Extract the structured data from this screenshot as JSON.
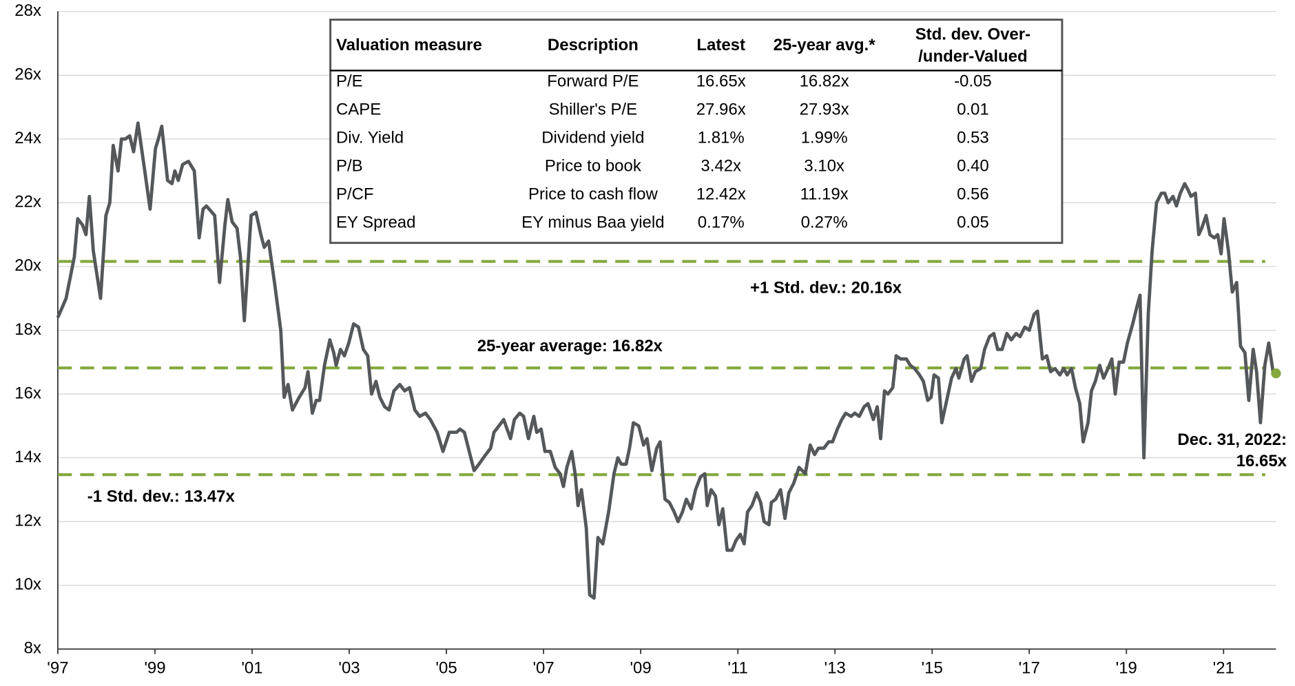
{
  "chart_data": {
    "type": "line",
    "xlim": [
      1997,
      2022.08
    ],
    "xticks": [
      {
        "value": 1997,
        "label": "'97"
      },
      {
        "value": 1999,
        "label": "'99"
      },
      {
        "value": 2001,
        "label": "'01"
      },
      {
        "value": 2003,
        "label": "'03"
      },
      {
        "value": 2005,
        "label": "'05"
      },
      {
        "value": 2007,
        "label": "'07"
      },
      {
        "value": 2009,
        "label": "'09"
      },
      {
        "value": 2011,
        "label": "'11"
      },
      {
        "value": 2013,
        "label": "'13"
      },
      {
        "value": 2015,
        "label": "'15"
      },
      {
        "value": 2017,
        "label": "'17"
      },
      {
        "value": 2019,
        "label": "'19"
      },
      {
        "value": 2021,
        "label": "'21"
      }
    ],
    "ylim": [
      8,
      28
    ],
    "yticks": [
      {
        "value": 8,
        "label": "8x"
      },
      {
        "value": 10,
        "label": "10x"
      },
      {
        "value": 12,
        "label": "12x"
      },
      {
        "value": 14,
        "label": "14x"
      },
      {
        "value": 16,
        "label": "16x"
      },
      {
        "value": 18,
        "label": "18x"
      },
      {
        "value": 20,
        "label": "20x"
      },
      {
        "value": 22,
        "label": "22x"
      },
      {
        "value": 24,
        "label": "24x"
      },
      {
        "value": 26,
        "label": "26x"
      },
      {
        "value": 28,
        "label": "28x"
      }
    ],
    "grid": true,
    "series": [
      {
        "color": "#54585a",
        "x": [
          1997.0,
          1997.17,
          1997.34,
          1997.41,
          1997.51,
          1997.58,
          1997.65,
          1997.73,
          1997.88,
          1997.99,
          1998.07,
          1998.14,
          1998.24,
          1998.31,
          1998.39,
          1998.48,
          1998.56,
          1998.65,
          1998.79,
          1998.9,
          1999.01,
          1999.07,
          1999.14,
          1999.26,
          1999.35,
          1999.41,
          1999.48,
          1999.57,
          1999.69,
          1999.81,
          1999.91,
          1999.99,
          2000.06,
          2000.23,
          2000.33,
          2000.44,
          2000.5,
          2000.59,
          2000.69,
          2000.76,
          2000.84,
          2000.98,
          2001.08,
          2001.18,
          2001.25,
          2001.34,
          2001.47,
          2001.59,
          2001.66,
          2001.74,
          2001.83,
          2001.97,
          2002.09,
          2002.15,
          2002.24,
          2002.32,
          2002.39,
          2002.49,
          2002.6,
          2002.68,
          2002.73,
          2002.82,
          2002.9,
          2002.99,
          2003.09,
          2003.19,
          2003.29,
          2003.38,
          2003.46,
          2003.55,
          2003.63,
          2003.73,
          2003.82,
          2003.92,
          2004.04,
          2004.14,
          2004.24,
          2004.35,
          2004.45,
          2004.57,
          2004.67,
          2004.81,
          2004.93,
          2005.06,
          2005.21,
          2005.28,
          2005.37,
          2005.47,
          2005.57,
          2005.67,
          2005.81,
          2005.91,
          2005.98,
          2006.08,
          2006.18,
          2006.32,
          2006.4,
          2006.51,
          2006.59,
          2006.69,
          2006.8,
          2006.86,
          2006.95,
          2007.03,
          2007.14,
          2007.24,
          2007.34,
          2007.41,
          2007.48,
          2007.58,
          2007.65,
          2007.71,
          2007.78,
          2007.88,
          2007.95,
          2008.04,
          2008.12,
          2008.22,
          2008.34,
          2008.45,
          2008.53,
          2008.6,
          2008.7,
          2008.77,
          2008.85,
          2008.96,
          2009.06,
          2009.13,
          2009.23,
          2009.33,
          2009.4,
          2009.5,
          2009.59,
          2009.69,
          2009.77,
          2009.86,
          2009.94,
          2010.04,
          2010.13,
          2010.23,
          2010.32,
          2010.37,
          2010.45,
          2010.54,
          2010.61,
          2010.69,
          2010.78,
          2010.88,
          2010.96,
          2011.05,
          2011.13,
          2011.2,
          2011.29,
          2011.39,
          2011.47,
          2011.54,
          2011.64,
          2011.69,
          2011.78,
          2011.88,
          2011.97,
          2012.05,
          2012.15,
          2012.26,
          2012.39,
          2012.49,
          2012.58,
          2012.66,
          2012.77,
          2012.87,
          2012.95,
          2013.05,
          2013.14,
          2013.22,
          2013.33,
          2013.41,
          2013.5,
          2013.6,
          2013.68,
          2013.79,
          2013.87,
          2013.94,
          2014.02,
          2014.09,
          2014.19,
          2014.26,
          2014.35,
          2014.47,
          2014.55,
          2014.64,
          2014.74,
          2014.82,
          2014.91,
          2014.98,
          2015.04,
          2015.13,
          2015.2,
          2015.3,
          2015.4,
          2015.49,
          2015.55,
          2015.66,
          2015.72,
          2015.81,
          2015.89,
          2016.0,
          2016.08,
          2016.18,
          2016.27,
          2016.35,
          2016.44,
          2016.54,
          2016.63,
          2016.73,
          2016.81,
          2016.91,
          2017.0,
          2017.1,
          2017.17,
          2017.27,
          2017.36,
          2017.44,
          2017.53,
          2017.63,
          2017.71,
          2017.78,
          2017.87,
          2017.95,
          2018.04,
          2018.11,
          2018.21,
          2018.28,
          2018.36,
          2018.45,
          2018.53,
          2018.62,
          2018.7,
          2018.77,
          2018.85,
          2018.94,
          2019.02,
          2019.13,
          2019.21,
          2019.28,
          2019.36,
          2019.45,
          2019.53,
          2019.62,
          2019.72,
          2019.79,
          2019.86,
          2019.96,
          2020.03,
          2020.11,
          2020.2,
          2020.27,
          2020.33,
          2020.42,
          2020.49,
          2020.55,
          2020.64,
          2020.72,
          2020.81,
          2020.88,
          2020.95,
          2021.01,
          2021.1,
          2021.18,
          2021.27,
          2021.35,
          2021.44,
          2021.52,
          2021.61,
          2021.68,
          2021.76,
          2021.85,
          2021.93,
          2022.02,
          2022.08
        ],
        "values": [
          18.4,
          19.0,
          20.3,
          21.5,
          21.3,
          21.0,
          22.2,
          20.5,
          19.0,
          21.6,
          22.0,
          23.8,
          23.0,
          24.0,
          24.0,
          24.1,
          23.6,
          24.5,
          23.0,
          21.8,
          23.7,
          24.0,
          24.4,
          22.7,
          22.6,
          23.0,
          22.7,
          23.2,
          23.3,
          23.0,
          20.9,
          21.8,
          21.9,
          21.6,
          19.5,
          21.3,
          22.1,
          21.4,
          21.2,
          20.3,
          18.3,
          21.6,
          21.7,
          21.0,
          20.6,
          20.8,
          19.4,
          18.0,
          15.9,
          16.3,
          15.5,
          15.9,
          16.2,
          16.7,
          15.4,
          15.8,
          15.8,
          16.9,
          17.7,
          17.3,
          16.9,
          17.4,
          17.2,
          17.6,
          18.2,
          18.1,
          17.4,
          17.2,
          16.0,
          16.4,
          15.9,
          15.6,
          15.5,
          16.1,
          16.3,
          16.1,
          16.2,
          15.5,
          15.3,
          15.4,
          15.2,
          14.8,
          14.2,
          14.8,
          14.8,
          14.9,
          14.8,
          14.2,
          13.6,
          13.8,
          14.1,
          14.3,
          14.8,
          15.0,
          15.2,
          14.6,
          15.2,
          15.4,
          15.3,
          14.6,
          15.3,
          14.8,
          14.9,
          14.2,
          14.2,
          13.7,
          13.5,
          13.1,
          13.7,
          14.2,
          13.5,
          12.5,
          13.0,
          11.8,
          9.7,
          9.6,
          11.5,
          11.3,
          12.3,
          13.5,
          14.0,
          13.8,
          13.8,
          14.3,
          15.1,
          15.0,
          14.4,
          14.6,
          13.6,
          14.3,
          14.5,
          12.7,
          12.6,
          12.3,
          12.0,
          12.3,
          12.7,
          12.4,
          13.0,
          13.4,
          13.5,
          12.5,
          13.0,
          12.8,
          11.9,
          12.4,
          11.1,
          11.1,
          11.4,
          11.6,
          11.3,
          12.3,
          12.5,
          12.9,
          12.6,
          12.0,
          11.9,
          12.6,
          12.7,
          13.0,
          12.1,
          12.9,
          13.2,
          13.7,
          13.5,
          14.4,
          14.1,
          14.3,
          14.3,
          14.5,
          14.5,
          14.9,
          15.2,
          15.4,
          15.3,
          15.4,
          15.3,
          15.6,
          15.7,
          15.2,
          15.6,
          14.6,
          16.1,
          16.0,
          16.2,
          17.2,
          17.1,
          17.1,
          16.9,
          16.8,
          16.6,
          16.4,
          15.8,
          15.9,
          16.6,
          16.5,
          15.1,
          15.8,
          16.5,
          16.8,
          16.5,
          17.1,
          17.2,
          16.4,
          16.7,
          16.8,
          17.4,
          17.8,
          17.9,
          17.4,
          17.4,
          17.9,
          17.7,
          17.9,
          17.8,
          18.1,
          18.0,
          18.5,
          18.6,
          17.1,
          17.2,
          16.7,
          16.8,
          16.6,
          16.8,
          16.6,
          16.8,
          16.2,
          15.7,
          14.5,
          15.1,
          16.1,
          16.4,
          16.9,
          16.5,
          16.8,
          17.1,
          16.0,
          17.0,
          17.0,
          17.6,
          18.2,
          18.7,
          19.1,
          14.0,
          18.5,
          20.5,
          22.0,
          22.3,
          22.3,
          22.0,
          22.2,
          21.9,
          22.3,
          22.6,
          22.4,
          22.2,
          22.3,
          21.0,
          21.2,
          21.6,
          21.0,
          20.9,
          21.0,
          20.4,
          21.5,
          20.5,
          19.2,
          19.5,
          17.5,
          17.3,
          15.8,
          17.4,
          16.7,
          15.1,
          16.9,
          17.6,
          16.7,
          16.65
        ]
      }
    ],
    "reference_lines": [
      {
        "value": 20.16,
        "label": "+1 Std. dev.: 20.16x"
      },
      {
        "value": 16.82,
        "label": "25-year average: 16.82x"
      },
      {
        "value": 13.47,
        "label": "-1 Std. dev.: 13.47x"
      }
    ],
    "reference_color": "#84a83c",
    "annotation": [
      "Dec. 31, 2022:",
      "16.65x"
    ],
    "table": {
      "columns": [
        "Valuation measure",
        "Description",
        "Latest",
        "25-year avg.*",
        [
          "Std. dev. Over-",
          "/under-Valued"
        ]
      ],
      "rows": [
        [
          "P/E",
          "Forward P/E",
          "16.65x",
          "16.82x",
          "-0.05"
        ],
        [
          "CAPE",
          "Shiller's P/E",
          "27.96x",
          "27.93x",
          "0.01"
        ],
        [
          "Div. Yield",
          "Dividend yield",
          "1.81%",
          "1.99%",
          "0.53"
        ],
        [
          "P/B",
          "Price to book",
          "3.42x",
          "3.10x",
          "0.40"
        ],
        [
          "P/CF",
          "Price to cash flow",
          "12.42x",
          "11.19x",
          "0.56"
        ],
        [
          "EY Spread",
          "EY minus Baa yield",
          "0.17%",
          "0.27%",
          "0.05"
        ]
      ]
    }
  }
}
